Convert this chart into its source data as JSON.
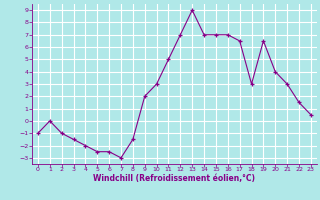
{
  "x": [
    0,
    1,
    2,
    3,
    4,
    5,
    6,
    7,
    8,
    9,
    10,
    11,
    12,
    13,
    14,
    15,
    16,
    17,
    18,
    19,
    20,
    21,
    22,
    23
  ],
  "y": [
    -1,
    0,
    -1,
    -1.5,
    -2,
    -2.5,
    -2.5,
    -3,
    -1.5,
    2,
    3,
    5,
    7,
    9,
    7,
    7,
    7,
    6.5,
    3,
    6.5,
    4,
    3,
    1.5,
    0.5
  ],
  "line_color": "#880088",
  "marker_color": "#880088",
  "bg_color": "#b0e8e8",
  "grid_color": "#ffffff",
  "xlabel": "Windchill (Refroidissement éolien,°C)",
  "xlabel_color": "#880088",
  "tick_color": "#880088",
  "ylim": [
    -3.5,
    9.5
  ],
  "xlim": [
    -0.5,
    23.5
  ],
  "yticks": [
    -3,
    -2,
    -1,
    0,
    1,
    2,
    3,
    4,
    5,
    6,
    7,
    8,
    9
  ],
  "xticks": [
    0,
    1,
    2,
    3,
    4,
    5,
    6,
    7,
    8,
    9,
    10,
    11,
    12,
    13,
    14,
    15,
    16,
    17,
    18,
    19,
    20,
    21,
    22,
    23
  ]
}
